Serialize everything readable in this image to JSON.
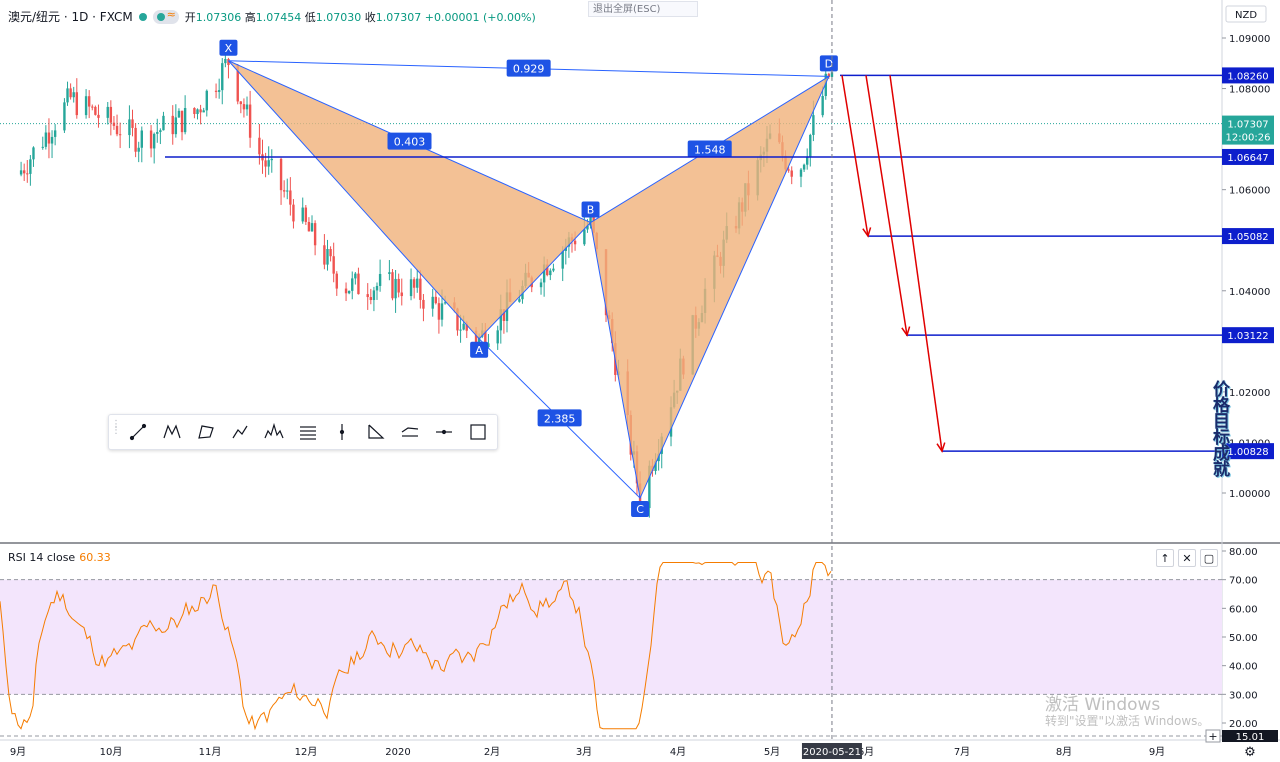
{
  "header": {
    "symbol": "澳元/纽元 · 1D · FXCM",
    "open_label": "开",
    "open": "1.07306",
    "high_label": "高",
    "high": "1.07454",
    "low_label": "低",
    "low": "1.07030",
    "close_label": "收",
    "close": "1.07307",
    "change": "+0.00001 (+0.00%)"
  },
  "exit_fullscreen": "退出全屏(ESC)",
  "currency_badge": "NZD",
  "price_axis": {
    "ticks": [
      "1.09000",
      "1.08000",
      "1.06000",
      "1.04000",
      "1.02000",
      "1.01000",
      "1.00000"
    ],
    "tick_values": [
      1.09,
      1.08,
      1.06,
      1.04,
      1.02,
      1.01,
      1.0
    ]
  },
  "price_labels": [
    {
      "text": "1.08260",
      "value": 1.0826,
      "color": "#0d1ecc"
    },
    {
      "text": "1.07307",
      "value": 1.07307,
      "color": "#26a69a"
    },
    {
      "text": "12:00:26",
      "value": 1.0705,
      "color": "#26a69a"
    },
    {
      "text": "1.06647",
      "value": 1.06647,
      "color": "#0d1ecc"
    },
    {
      "text": "1.05082",
      "value": 1.05082,
      "color": "#0d1ecc"
    },
    {
      "text": "1.03122",
      "value": 1.03122,
      "color": "#0d1ecc"
    },
    {
      "text": "1.00828",
      "value": 1.00828,
      "color": "#0d1ecc"
    }
  ],
  "pattern": {
    "points": [
      {
        "label": "X",
        "date": "2019-11-08",
        "price": 1.0855
      },
      {
        "label": "A",
        "date": "2020-01-28",
        "price": 1.0305
      },
      {
        "label": "B",
        "date": "2020-03-04",
        "price": 1.0535
      },
      {
        "label": "C",
        "date": "2020-03-20",
        "price": 0.999
      },
      {
        "label": "D",
        "date": "2020-05-20",
        "price": 1.0824
      }
    ],
    "ratios": [
      {
        "text": "0.929",
        "between": "XD"
      },
      {
        "text": "0.403",
        "between": "XB"
      },
      {
        "text": "1.548",
        "between": "BD"
      },
      {
        "text": "2.385",
        "between": "AC"
      }
    ]
  },
  "target_levels": [
    1.0826,
    1.06647,
    1.05082,
    1.03122,
    1.00828
  ],
  "time_axis": {
    "labels": [
      "9月",
      "10月",
      "11月",
      "12月",
      "2020",
      "2月",
      "3月",
      "4月",
      "5月",
      "6月",
      "7月",
      "8月",
      "9月"
    ],
    "current_date": "2020-05-21"
  },
  "rsi": {
    "label": "RSI 14 close",
    "value": "60.33",
    "ticks": [
      "80.00",
      "70.00",
      "60.00",
      "50.00",
      "40.00",
      "30.00",
      "20.00"
    ],
    "tick_values": [
      80,
      70,
      60,
      50,
      40,
      30,
      20
    ],
    "bottom_label": "15.01",
    "upper_band": 70,
    "lower_band": 30
  },
  "colors": {
    "up": "#26a69a",
    "down": "#ef5350",
    "pattern_fill": "#f0b27a",
    "pattern_line": "#2962ff",
    "level_line": "#0d1ecc",
    "arrow": "#e00000",
    "rsi_line": "#f57c00",
    "rsi_band": "#f3e5fc"
  },
  "side_text": "价格目标成就",
  "watermark": {
    "line1": "激活 Windows",
    "line2": "转到\"设置\"以激活 Windows。"
  },
  "toolbar_icons": [
    "trend-line-icon",
    "xabcd-pattern-icon",
    "cypher-pattern-icon",
    "abcd-pattern-icon",
    "head-shoulders-icon",
    "elliott-wave-icon",
    "vertical-line-icon",
    "triangle-pattern-icon",
    "three-drives-icon",
    "horizontal-line-icon",
    "rectangle-icon"
  ]
}
